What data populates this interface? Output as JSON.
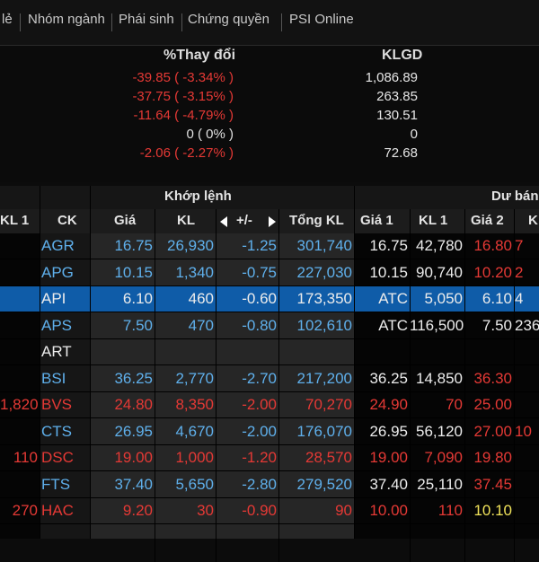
{
  "menu": [
    "lẻ",
    "Nhóm ngành",
    "Phái sinh",
    "Chứng quyền",
    "PSI Online"
  ],
  "summary": {
    "change_header": "%Thay đổi",
    "volume_header": "KLGD",
    "rows": [
      {
        "change": "-39.85 ( -3.34% )",
        "volume": "1,086.89",
        "color": "#e53935"
      },
      {
        "change": "-37.75 ( -3.15% )",
        "volume": "263.85",
        "color": "#e53935"
      },
      {
        "change": "-11.64 ( -4.79% )",
        "volume": "130.51",
        "color": "#e53935"
      },
      {
        "change": "0 ( 0% )",
        "volume": "0",
        "color": "#e0e0e0"
      },
      {
        "change": "-2.06 ( -2.27% )",
        "volume": "72.68",
        "color": "#e53935"
      }
    ]
  },
  "table": {
    "group_matched": "Khớp lệnh",
    "group_buy": "Dư bán",
    "columns": {
      "kl1_left": "KL 1",
      "ck": "CK",
      "gia": "Giá",
      "kl": "KL",
      "change": "+/-",
      "tong_kl": "Tổng KL",
      "gia1": "Giá 1",
      "kl1": "KL 1",
      "gia2": "Giá 2",
      "k_partial": "K"
    },
    "rows": [
      {
        "kl1_left": "",
        "ck": "AGR",
        "gia": "16.75",
        "kl": "26,930",
        "change": "-1.25",
        "tong": "301,740",
        "gia1": "16.75",
        "kl1": "42,780",
        "gia2": "16.80",
        "last": "7",
        "c": "blue",
        "cg2": "red",
        "cl": "red",
        "cg1": "white",
        "selected": false
      },
      {
        "kl1_left": "",
        "ck": "APG",
        "gia": "10.15",
        "kl": "1,340",
        "change": "-0.75",
        "tong": "227,030",
        "gia1": "10.15",
        "kl1": "90,740",
        "gia2": "10.20",
        "last": "2",
        "c": "blue",
        "cg2": "red",
        "cl": "red",
        "cg1": "white",
        "selected": false
      },
      {
        "kl1_left": "",
        "ck": "API",
        "gia": "6.10",
        "kl": "460",
        "change": "-0.60",
        "tong": "173,350",
        "gia1": "ATC",
        "kl1": "5,050",
        "gia2": "6.10",
        "last": "4",
        "c": "white",
        "cg2": "white",
        "cl": "white",
        "cg1": "white",
        "selected": true
      },
      {
        "kl1_left": "",
        "ck": "APS",
        "gia": "7.50",
        "kl": "470",
        "change": "-0.80",
        "tong": "102,610",
        "gia1": "ATC",
        "kl1": "116,500",
        "gia2": "7.50",
        "last": "236",
        "c": "blue",
        "cg2": "white",
        "cl": "white",
        "cg1": "white",
        "selected": false
      },
      {
        "kl1_left": "",
        "ck": "ART",
        "gia": "",
        "kl": "",
        "change": "",
        "tong": "",
        "gia1": "",
        "kl1": "",
        "gia2": "",
        "last": "",
        "c": "white",
        "cg2": "white",
        "cl": "white",
        "cg1": "white",
        "selected": false
      },
      {
        "kl1_left": "",
        "ck": "BSI",
        "gia": "36.25",
        "kl": "2,770",
        "change": "-2.70",
        "tong": "217,200",
        "gia1": "36.25",
        "kl1": "14,850",
        "gia2": "36.30",
        "last": "",
        "c": "blue",
        "cg2": "red",
        "cl": "red",
        "cg1": "white",
        "selected": false
      },
      {
        "kl1_left": "1,820",
        "ck": "BVS",
        "gia": "24.80",
        "kl": "8,350",
        "change": "-2.00",
        "tong": "70,270",
        "gia1": "24.90",
        "kl1": "70",
        "gia2": "25.00",
        "last": "",
        "c": "red",
        "cg2": "red",
        "cl": "red",
        "cg1": "red",
        "selected": false
      },
      {
        "kl1_left": "",
        "ck": "CTS",
        "gia": "26.95",
        "kl": "4,670",
        "change": "-2.00",
        "tong": "176,070",
        "gia1": "26.95",
        "kl1": "56,120",
        "gia2": "27.00",
        "last": "10",
        "c": "blue",
        "cg2": "red",
        "cl": "red",
        "cg1": "white",
        "selected": false
      },
      {
        "kl1_left": "110",
        "ck": "DSC",
        "gia": "19.00",
        "kl": "1,000",
        "change": "-1.20",
        "tong": "28,570",
        "gia1": "19.00",
        "kl1": "7,090",
        "gia2": "19.80",
        "last": "",
        "c": "red",
        "cg2": "red",
        "cl": "red",
        "cg1": "red",
        "selected": false
      },
      {
        "kl1_left": "",
        "ck": "FTS",
        "gia": "37.40",
        "kl": "5,650",
        "change": "-2.80",
        "tong": "279,520",
        "gia1": "37.40",
        "kl1": "25,110",
        "gia2": "37.45",
        "last": "",
        "c": "blue",
        "cg2": "red",
        "cl": "red",
        "cg1": "white",
        "selected": false
      },
      {
        "kl1_left": "270",
        "ck": "HAC",
        "gia": "9.20",
        "kl": "30",
        "change": "-0.90",
        "tong": "90",
        "gia1": "10.00",
        "kl1": "110",
        "gia2": "10.10",
        "last": "",
        "c": "red",
        "cg2": "yellow",
        "cl": "red",
        "cg1": "red",
        "selected": false
      }
    ]
  },
  "colors": {
    "blue": "#5fb0ec",
    "red": "#e53935",
    "white": "#ececec",
    "yellow": "#f1e35a",
    "selected": "#0f5ca8"
  }
}
